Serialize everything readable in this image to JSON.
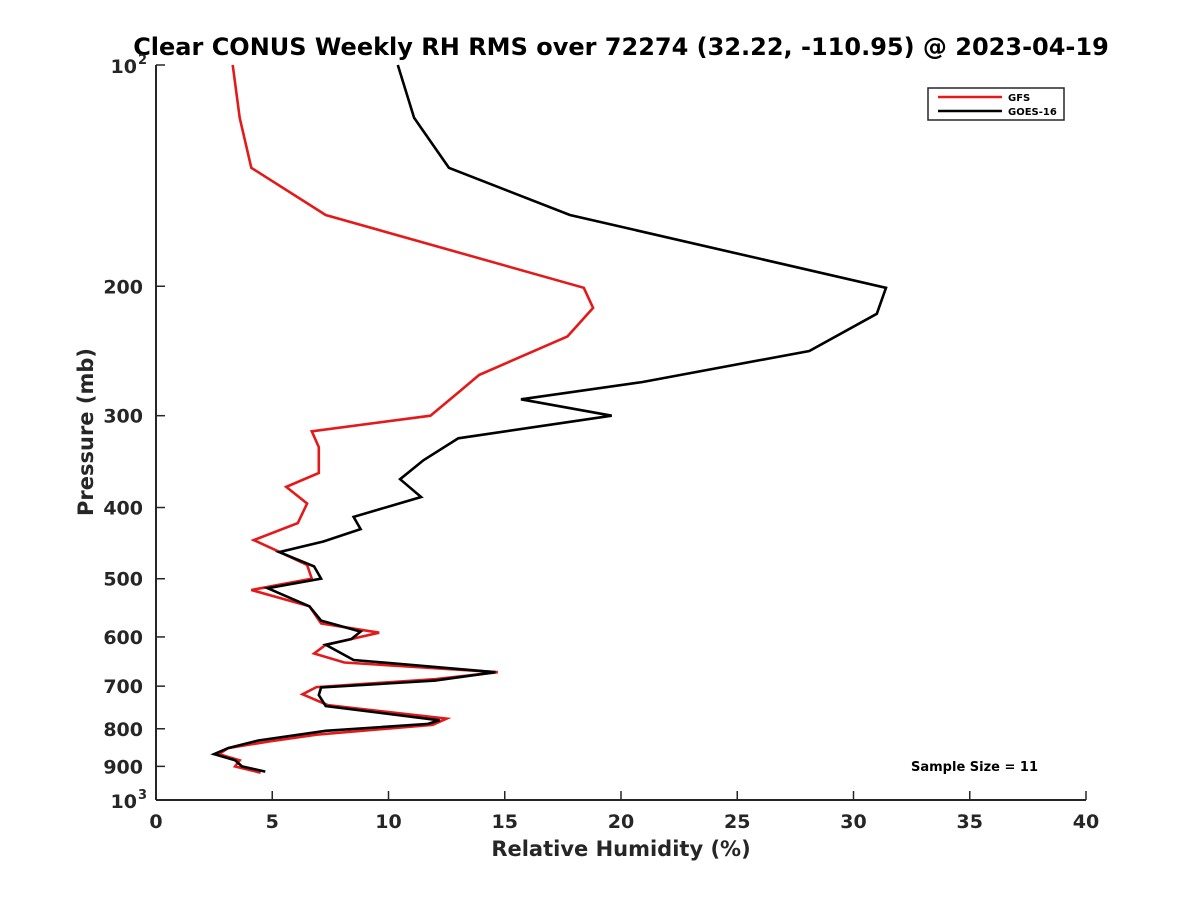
{
  "chart_data": {
    "type": "line",
    "title": "Clear CONUS Weekly RH RMS over 72274 (32.22, -110.95) @ 2023-04-19",
    "xlabel": "Relative Humidity (%)",
    "ylabel": "Pressure (mb)",
    "xlim": [
      0,
      40
    ],
    "ylim": [
      100,
      1000
    ],
    "y_scale": "log",
    "y_reversed": true,
    "grid": false,
    "legend_position": "top-right",
    "x_ticks": [
      0,
      5,
      10,
      15,
      20,
      25,
      30,
      35,
      40
    ],
    "x_tick_labels": [
      "0",
      "5",
      "10",
      "15",
      "20",
      "25",
      "30",
      "35",
      "40"
    ],
    "y_ticks": [
      100,
      200,
      300,
      400,
      500,
      600,
      700,
      800,
      900,
      1000
    ],
    "y_tick_labels": [
      {
        "base": "10",
        "exp": "2"
      },
      {
        "base": "200",
        "exp": ""
      },
      {
        "base": "300",
        "exp": ""
      },
      {
        "base": "400",
        "exp": ""
      },
      {
        "base": "500",
        "exp": ""
      },
      {
        "base": "600",
        "exp": ""
      },
      {
        "base": "700",
        "exp": ""
      },
      {
        "base": "800",
        "exp": ""
      },
      {
        "base": "900",
        "exp": ""
      },
      {
        "base": "10",
        "exp": "3"
      }
    ],
    "series": [
      {
        "name": "GFS",
        "color": "#e41a1a",
        "points": [
          [
            3.3,
            100
          ],
          [
            3.6,
            118
          ],
          [
            4.1,
            138
          ],
          [
            7.3,
            160
          ],
          [
            18.4,
            201
          ],
          [
            18.8,
            214
          ],
          [
            17.7,
            234
          ],
          [
            13.9,
            264
          ],
          [
            13.0,
            279
          ],
          [
            11.8,
            300
          ],
          [
            6.7,
            315
          ],
          [
            7.0,
            331
          ],
          [
            7.0,
            359
          ],
          [
            5.6,
            375
          ],
          [
            6.5,
            395
          ],
          [
            6.1,
            420
          ],
          [
            4.2,
            443
          ],
          [
            5.2,
            458
          ],
          [
            6.5,
            479
          ],
          [
            6.7,
            500
          ],
          [
            4.1,
            518
          ],
          [
            6.6,
            545
          ],
          [
            7.1,
            575
          ],
          [
            9.6,
            592
          ],
          [
            7.3,
            615
          ],
          [
            6.8,
            632
          ],
          [
            8.1,
            650
          ],
          [
            14.7,
            670
          ],
          [
            12.0,
            685
          ],
          [
            6.9,
            702
          ],
          [
            6.3,
            718
          ],
          [
            7.4,
            743
          ],
          [
            12.5,
            775
          ],
          [
            11.9,
            790
          ],
          [
            6.9,
            815
          ],
          [
            4.9,
            832
          ],
          [
            3.1,
            850
          ],
          [
            2.7,
            866
          ],
          [
            3.6,
            883
          ],
          [
            3.4,
            900
          ],
          [
            4.5,
            918
          ]
        ]
      },
      {
        "name": "GOES-16",
        "color": "#000000",
        "points": [
          [
            10.4,
            100
          ],
          [
            11.1,
            118
          ],
          [
            12.6,
            138
          ],
          [
            17.8,
            160
          ],
          [
            31.4,
            201
          ],
          [
            31.0,
            218
          ],
          [
            28.1,
            245
          ],
          [
            20.9,
            270
          ],
          [
            15.7,
            285
          ],
          [
            19.6,
            300
          ],
          [
            13.0,
            322
          ],
          [
            11.5,
            345
          ],
          [
            10.5,
            366
          ],
          [
            11.4,
            387
          ],
          [
            8.5,
            412
          ],
          [
            8.8,
            428
          ],
          [
            7.2,
            445
          ],
          [
            5.3,
            460
          ],
          [
            6.8,
            481
          ],
          [
            7.1,
            500
          ],
          [
            4.8,
            515
          ],
          [
            6.6,
            545
          ],
          [
            7.1,
            570
          ],
          [
            8.8,
            590
          ],
          [
            8.4,
            604
          ],
          [
            7.3,
            615
          ],
          [
            8.5,
            645
          ],
          [
            14.6,
            670
          ],
          [
            12.0,
            688
          ],
          [
            7.1,
            703
          ],
          [
            7.0,
            720
          ],
          [
            7.3,
            745
          ],
          [
            12.2,
            779
          ],
          [
            11.7,
            788
          ],
          [
            7.3,
            805
          ],
          [
            4.4,
            830
          ],
          [
            3.1,
            850
          ],
          [
            2.5,
            866
          ],
          [
            3.4,
            883
          ],
          [
            3.7,
            900
          ],
          [
            4.7,
            915
          ]
        ]
      }
    ],
    "annotations": [
      "Sample Size = 11"
    ]
  }
}
